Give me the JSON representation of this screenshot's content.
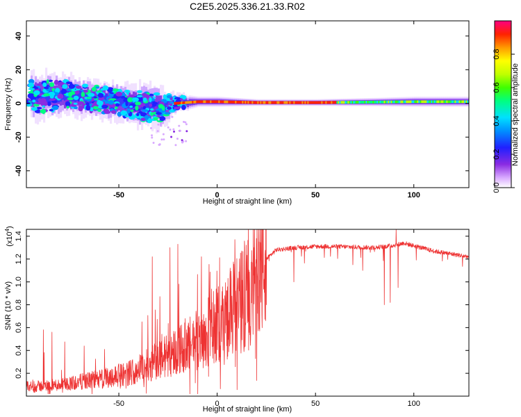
{
  "figure": {
    "title": "C2E5.2025.336.21.33.R02"
  },
  "chart_data": [
    {
      "type": "heatmap",
      "name": "spectrogram",
      "xlabel": "Height of straight line (km)",
      "ylabel": "Frequency (Hz)",
      "xlim": [
        -97,
        128
      ],
      "ylim": [
        -50,
        49
      ],
      "xticks": [
        -50,
        0,
        50,
        100
      ],
      "yticks": [
        -40,
        -20,
        0,
        20,
        40
      ],
      "colorbar": {
        "label": "Normalized spectral amplitude",
        "range": [
          0,
          1
        ],
        "ticks": [
          "0.0",
          "0.2",
          "0.4",
          "0.6",
          "0.8"
        ],
        "tick_values": [
          0.0,
          0.2,
          0.4,
          0.6,
          0.8
        ]
      },
      "ridge": [
        {
          "x": -95,
          "f": 4,
          "spread": 14
        },
        {
          "x": -80,
          "f": 5,
          "spread": 12
        },
        {
          "x": -65,
          "f": 3,
          "spread": 11
        },
        {
          "x": -50,
          "f": 1,
          "spread": 11
        },
        {
          "x": -40,
          "f": -1,
          "spread": 12
        },
        {
          "x": -30,
          "f": -3,
          "spread": 13
        },
        {
          "x": -22,
          "f": 0,
          "spread": 6
        },
        {
          "x": -10,
          "f": 1,
          "spread": 3
        },
        {
          "x": 0,
          "f": 1,
          "spread": 3
        },
        {
          "x": 20,
          "f": 0.5,
          "spread": 2
        },
        {
          "x": 50,
          "f": 0.5,
          "spread": 2
        },
        {
          "x": 80,
          "f": 0.8,
          "spread": 2.5
        },
        {
          "x": 100,
          "f": 1,
          "spread": 3
        },
        {
          "x": 128,
          "f": 1,
          "spread": 3
        }
      ]
    },
    {
      "type": "line",
      "name": "snr",
      "xlabel": "Height of straight line (km)",
      "ylabel": "SNR (10 * v/v)",
      "y_multiplier": "(x10",
      "y_multiplier_exp": "4",
      "y_multiplier_close": ")",
      "xlim": [
        -97,
        128
      ],
      "ylim": [
        0.0,
        1.46
      ],
      "xticks": [
        -50,
        0,
        50,
        100
      ],
      "yticks": [
        "0.2",
        "0.4",
        "0.6",
        "0.8",
        "1.0",
        "1.2",
        "1.4"
      ],
      "ytick_values": [
        0.2,
        0.4,
        0.6,
        0.8,
        1.0,
        1.2,
        1.4
      ],
      "color": "#ee3333",
      "trend": {
        "x": [
          -97,
          -80,
          -60,
          -45,
          -35,
          -25,
          -15,
          -5,
          5,
          15,
          20,
          25,
          30,
          40,
          50,
          60,
          80,
          90,
          95,
          110,
          128
        ],
        "y": [
          0.08,
          0.1,
          0.15,
          0.2,
          0.28,
          0.36,
          0.45,
          0.55,
          0.7,
          0.88,
          1.05,
          1.2,
          1.28,
          1.3,
          1.31,
          1.31,
          1.3,
          1.32,
          1.34,
          1.27,
          1.22
        ]
      },
      "dropouts": [
        {
          "x": 25,
          "y": 0.8
        },
        {
          "x": 39,
          "y": 1.0
        },
        {
          "x": 69,
          "y": 1.15
        },
        {
          "x": 74,
          "y": 1.1
        },
        {
          "x": 85,
          "y": 0.8
        },
        {
          "x": 88,
          "y": 0.82
        },
        {
          "x": 92,
          "y": 0.95
        }
      ],
      "spikes": [
        {
          "x": -33,
          "y": 1.22
        },
        {
          "x": -24,
          "y": 1.3
        },
        {
          "x": -20,
          "y": 1.33
        },
        {
          "x": -8,
          "y": 1.22
        },
        {
          "x": 9,
          "y": 1.37
        },
        {
          "x": 20,
          "y": 1.38
        },
        {
          "x": 91,
          "y": 1.46
        }
      ]
    }
  ]
}
